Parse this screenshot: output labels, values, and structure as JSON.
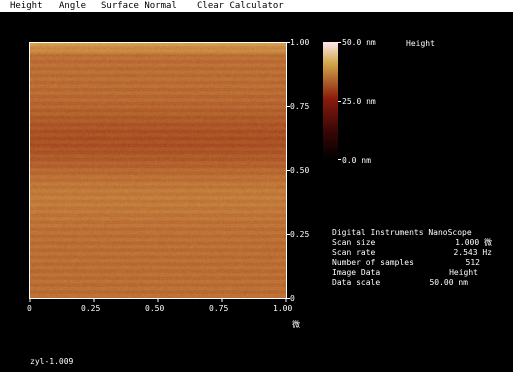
{
  "menu": {
    "items": [
      "Height",
      "Angle",
      "Surface Normal",
      "Clear Calculator"
    ]
  },
  "image": {
    "x_ticks": [
      "0",
      "0.25",
      "0.50",
      "0.75",
      "1.00"
    ],
    "y_ticks": [
      "1.00",
      "0.75",
      "0.50",
      "0.25",
      "0"
    ],
    "axis_unit": "微"
  },
  "colorbar": {
    "labels": [
      "50.0 nm",
      "25.0 nm",
      "0.0 nm"
    ],
    "title": "Height",
    "colors": {
      "top": "#ffe8f0",
      "upper": "#d2a84a",
      "mid": "#8a1c0c",
      "lower": "#3a0806",
      "bottom": "#000000",
      "image_bright": "#d9a250",
      "image_dark": "#962e12"
    }
  },
  "info": {
    "header": "Digital Instruments NanoScope",
    "rows": [
      {
        "label": "Scan size",
        "value": "1.000 微"
      },
      {
        "label": "Scan rate",
        "value": "2.543 Hz"
      },
      {
        "label": "Number of samples",
        "value": "512"
      },
      {
        "label": "Image Data",
        "value": "Height"
      },
      {
        "label": "Data scale",
        "value": "50.00 nm"
      }
    ]
  },
  "footer": {
    "filename": "zyl-1.009"
  }
}
